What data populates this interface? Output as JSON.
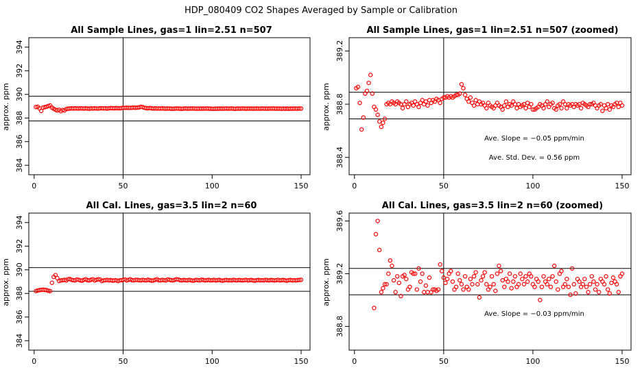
{
  "figure": {
    "title": "HDP_080409  CO2 Shapes Averaged by Sample or Calibration",
    "marker_color": "#ff0000"
  },
  "chart_data": [
    {
      "type": "scatter",
      "title": "All Sample Lines, gas=1 lin=2.51 n=507",
      "xlabel": "",
      "ylabel": "approx. ppm",
      "xlim": [
        -3,
        155
      ],
      "ylim": [
        383.2,
        394.8
      ],
      "xticks": [
        "0",
        "50",
        "100",
        "150"
      ],
      "yticks": [
        "384",
        "386",
        "388",
        "390",
        "392",
        "394"
      ],
      "hlines": [
        389.85,
        387.75
      ],
      "vline": 50,
      "annotations": [],
      "x": [
        1,
        2,
        3,
        4,
        5,
        6,
        7,
        8,
        9,
        10,
        11,
        12,
        13,
        14,
        15,
        16,
        17,
        18,
        19,
        20,
        21,
        22,
        23,
        24,
        25,
        26,
        27,
        28,
        29,
        30,
        31,
        32,
        33,
        34,
        35,
        36,
        37,
        38,
        39,
        40,
        41,
        42,
        43,
        44,
        45,
        46,
        47,
        48,
        49,
        50,
        51,
        52,
        53,
        54,
        55,
        56,
        57,
        58,
        59,
        60,
        61,
        62,
        63,
        64,
        65,
        66,
        67,
        68,
        69,
        70,
        71,
        72,
        73,
        74,
        75,
        76,
        77,
        78,
        79,
        80,
        81,
        82,
        83,
        84,
        85,
        86,
        87,
        88,
        89,
        90,
        91,
        92,
        93,
        94,
        95,
        96,
        97,
        98,
        99,
        100,
        101,
        102,
        103,
        104,
        105,
        106,
        107,
        108,
        109,
        110,
        111,
        112,
        113,
        114,
        115,
        116,
        117,
        118,
        119,
        120,
        121,
        122,
        123,
        124,
        125,
        126,
        127,
        128,
        129,
        130,
        131,
        132,
        133,
        134,
        135,
        136,
        137,
        138,
        139,
        140,
        141,
        142,
        143,
        144,
        145,
        146,
        147,
        148,
        149,
        150
      ],
      "y": [
        388.93,
        388.95,
        388.82,
        388.6,
        388.88,
        388.92,
        388.96,
        389.02,
        389.06,
        388.88,
        388.78,
        388.7,
        388.64,
        388.7,
        388.58,
        388.68,
        388.64,
        388.76,
        388.79,
        388.8,
        388.82,
        388.8,
        388.82,
        388.81,
        388.8,
        388.82,
        388.81,
        388.8,
        388.82,
        388.8,
        388.79,
        388.82,
        388.8,
        388.82,
        388.81,
        388.8,
        388.82,
        388.83,
        388.81,
        388.82,
        388.8,
        388.82,
        388.84,
        388.83,
        388.82,
        388.84,
        388.83,
        388.82,
        388.84,
        388.86,
        388.86,
        388.87,
        388.86,
        388.86,
        388.87,
        388.88,
        388.87,
        388.88,
        388.9,
        388.95,
        388.92,
        388.86,
        388.84,
        388.82,
        388.85,
        388.82,
        388.8,
        388.82,
        388.8,
        388.81,
        388.8,
        388.82,
        388.8,
        388.79,
        388.81,
        388.8,
        388.79,
        388.78,
        388.8,
        388.81,
        388.8,
        388.79,
        388.78,
        388.8,
        388.81,
        388.79,
        388.8,
        388.8,
        388.81,
        388.8,
        388.79,
        388.8,
        388.79,
        388.8,
        388.8,
        388.8,
        388.81,
        388.79,
        388.8,
        388.78,
        388.78,
        388.79,
        388.79,
        388.8,
        388.8,
        388.79,
        388.8,
        388.81,
        388.79,
        388.8,
        388.81,
        388.79,
        388.78,
        388.8,
        388.8,
        388.79,
        388.81,
        388.8,
        388.79,
        388.8,
        388.8,
        388.8,
        388.79,
        388.8,
        388.8,
        388.8,
        388.79,
        388.81,
        388.8,
        388.8,
        388.79,
        388.8,
        388.8,
        388.81,
        388.8,
        388.79,
        388.8,
        388.8,
        388.78,
        388.8,
        388.79,
        388.8,
        388.78,
        388.8,
        388.79,
        388.8,
        388.8,
        388.79,
        388.81,
        388.8
      ]
    },
    {
      "type": "scatter",
      "title": "All Sample Lines, gas=1 lin=2.51 n=507 (zoomed)",
      "xlabel": "",
      "ylabel": "approx. ppm",
      "xlim": [
        -3,
        155
      ],
      "ylim": [
        388.27,
        389.3
      ],
      "xticks": [
        "0",
        "50",
        "100",
        "150"
      ],
      "yticks": [
        "388.4",
        "388.8",
        "389.2"
      ],
      "hlines": [
        388.89,
        388.69
      ],
      "vline": 50,
      "annotations": [
        "Ave. Slope =  −0.05  ppm/min",
        "Ave. Std. Dev. =  0.56  ppm"
      ],
      "x": [
        1,
        2,
        3,
        4,
        5,
        6,
        7,
        8,
        9,
        10,
        11,
        12,
        13,
        14,
        15,
        16,
        17,
        18,
        19,
        20,
        21,
        22,
        23,
        24,
        25,
        26,
        27,
        28,
        29,
        30,
        31,
        32,
        33,
        34,
        35,
        36,
        37,
        38,
        39,
        40,
        41,
        42,
        43,
        44,
        45,
        46,
        47,
        48,
        49,
        50,
        51,
        52,
        53,
        54,
        55,
        56,
        57,
        58,
        59,
        60,
        61,
        62,
        63,
        64,
        65,
        66,
        67,
        68,
        69,
        70,
        71,
        72,
        73,
        74,
        75,
        76,
        77,
        78,
        79,
        80,
        81,
        82,
        83,
        84,
        85,
        86,
        87,
        88,
        89,
        90,
        91,
        92,
        93,
        94,
        95,
        96,
        97,
        98,
        99,
        100,
        101,
        102,
        103,
        104,
        105,
        106,
        107,
        108,
        109,
        110,
        111,
        112,
        113,
        114,
        115,
        116,
        117,
        118,
        119,
        120,
        121,
        122,
        123,
        124,
        125,
        126,
        127,
        128,
        129,
        130,
        131,
        132,
        133,
        134,
        135,
        136,
        137,
        138,
        139,
        140,
        141,
        142,
        143,
        144,
        145,
        146,
        147,
        148,
        149,
        150
      ],
      "y": [
        388.92,
        388.93,
        388.81,
        388.61,
        388.7,
        388.88,
        388.9,
        388.96,
        389.02,
        388.88,
        388.78,
        388.76,
        388.72,
        388.67,
        388.63,
        388.66,
        388.69,
        388.8,
        388.81,
        388.8,
        388.82,
        388.81,
        388.8,
        388.82,
        388.81,
        388.8,
        388.77,
        388.8,
        388.82,
        388.78,
        388.8,
        388.81,
        388.79,
        388.82,
        388.8,
        388.78,
        388.81,
        388.83,
        388.8,
        388.82,
        388.79,
        388.83,
        388.81,
        388.83,
        388.82,
        388.84,
        388.83,
        388.81,
        388.84,
        388.85,
        388.85,
        388.86,
        388.85,
        388.86,
        388.85,
        388.86,
        388.87,
        388.87,
        388.88,
        388.95,
        388.92,
        388.87,
        388.84,
        388.82,
        388.85,
        388.81,
        388.79,
        388.83,
        388.8,
        388.82,
        388.8,
        388.81,
        388.79,
        388.77,
        388.81,
        388.79,
        388.78,
        388.77,
        388.79,
        388.81,
        388.79,
        388.78,
        388.76,
        388.79,
        388.82,
        388.78,
        388.8,
        388.79,
        388.82,
        388.8,
        388.77,
        388.8,
        388.78,
        388.79,
        388.8,
        388.77,
        388.81,
        388.78,
        388.8,
        388.76,
        388.76,
        388.77,
        388.78,
        388.8,
        388.79,
        388.77,
        388.8,
        388.82,
        388.78,
        388.8,
        388.81,
        388.77,
        388.76,
        388.79,
        388.8,
        388.77,
        388.82,
        388.8,
        388.77,
        388.8,
        388.79,
        388.8,
        388.78,
        388.8,
        388.79,
        388.8,
        388.77,
        388.81,
        388.8,
        388.79,
        388.78,
        388.8,
        388.8,
        388.81,
        388.79,
        388.77,
        388.79,
        388.8,
        388.75,
        388.79,
        388.77,
        388.8,
        388.76,
        388.79,
        388.78,
        388.8,
        388.81,
        388.78,
        388.81,
        388.79
      ]
    },
    {
      "type": "scatter",
      "title": "All Cal. Lines, gas=3.5 lin=2 n=60",
      "xlabel": "",
      "ylabel": "approx. ppm",
      "xlim": [
        -3,
        155
      ],
      "ylim": [
        383.2,
        394.8
      ],
      "xticks": [
        "0",
        "50",
        "100",
        "150"
      ],
      "yticks": [
        "384",
        "386",
        "388",
        "390",
        "392",
        "394"
      ],
      "hlines": [
        390.18,
        388.18
      ],
      "vline": 50,
      "annotations": [],
      "x": [
        1,
        2,
        3,
        4,
        5,
        6,
        7,
        8,
        9,
        10,
        11,
        12,
        13,
        14,
        15,
        16,
        17,
        18,
        19,
        20,
        21,
        22,
        23,
        24,
        25,
        26,
        27,
        28,
        29,
        30,
        31,
        32,
        33,
        34,
        35,
        36,
        37,
        38,
        39,
        40,
        41,
        42,
        43,
        44,
        45,
        46,
        47,
        48,
        49,
        50,
        51,
        52,
        53,
        54,
        55,
        56,
        57,
        58,
        59,
        60,
        61,
        62,
        63,
        64,
        65,
        66,
        67,
        68,
        69,
        70,
        71,
        72,
        73,
        74,
        75,
        76,
        77,
        78,
        79,
        80,
        81,
        82,
        83,
        84,
        85,
        86,
        87,
        88,
        89,
        90,
        91,
        92,
        93,
        94,
        95,
        96,
        97,
        98,
        99,
        100,
        101,
        102,
        103,
        104,
        105,
        106,
        107,
        108,
        109,
        110,
        111,
        112,
        113,
        114,
        115,
        116,
        117,
        118,
        119,
        120,
        121,
        122,
        123,
        124,
        125,
        126,
        127,
        128,
        129,
        130,
        131,
        132,
        133,
        134,
        135,
        136,
        137,
        138,
        139,
        140,
        141,
        142,
        143,
        144,
        145,
        146,
        147,
        148,
        149,
        150
      ],
      "y": [
        388.2,
        388.24,
        388.28,
        388.3,
        388.32,
        388.3,
        388.28,
        388.22,
        388.2,
        388.9,
        389.4,
        389.55,
        389.3,
        389.05,
        389.1,
        389.12,
        389.15,
        389.1,
        389.2,
        389.22,
        389.15,
        389.12,
        389.1,
        389.18,
        389.15,
        389.1,
        389.08,
        389.15,
        389.2,
        389.12,
        389.1,
        389.16,
        389.2,
        389.1,
        389.15,
        389.2,
        389.18,
        389.05,
        389.1,
        389.12,
        389.15,
        389.1,
        389.13,
        389.08,
        389.1,
        389.12,
        389.05,
        389.1,
        389.12,
        389.15,
        389.18,
        389.1,
        389.15,
        389.2,
        389.12,
        389.1,
        389.15,
        389.14,
        389.12,
        389.1,
        389.15,
        389.12,
        389.1,
        389.16,
        389.12,
        389.08,
        389.1,
        389.15,
        389.2,
        389.12,
        389.1,
        389.15,
        389.12,
        389.1,
        389.18,
        389.15,
        389.12,
        389.1,
        389.15,
        389.2,
        389.18,
        389.12,
        389.1,
        389.14,
        389.12,
        389.1,
        389.15,
        389.12,
        389.08,
        389.1,
        389.15,
        389.12,
        389.1,
        389.16,
        389.14,
        389.1,
        389.12,
        389.15,
        389.1,
        389.12,
        389.14,
        389.1,
        389.12,
        389.15,
        389.1,
        389.08,
        389.12,
        389.14,
        389.1,
        389.12,
        389.1,
        389.15,
        389.12,
        389.1,
        389.14,
        389.12,
        389.1,
        389.12,
        389.15,
        389.1,
        389.12,
        389.14,
        389.1,
        389.08,
        389.12,
        389.14,
        389.1,
        389.12,
        389.1,
        389.15,
        389.12,
        389.1,
        389.14,
        389.12,
        389.1,
        389.12,
        389.15,
        389.1,
        389.12,
        389.14,
        389.1,
        389.08,
        389.12,
        389.14,
        389.1,
        389.12,
        389.1,
        389.12,
        389.14,
        389.15
      ]
    },
    {
      "type": "scatter",
      "title": "All Cal. Lines, gas=3.5 lin=2 n=60 (zoomed)",
      "xlabel": "",
      "ylabel": "approx. ppm",
      "xlim": [
        -3,
        155
      ],
      "ylim": [
        388.62,
        389.66
      ],
      "xticks": [
        "0",
        "50",
        "100",
        "150"
      ],
      "yticks": [
        "388.8",
        "389.2",
        "389.6"
      ],
      "hlines": [
        389.24,
        389.04
      ],
      "vline": 50,
      "annotations": [
        "Ave. Slope =  −0.03  ppm/min"
      ],
      "x": [
        11,
        12,
        13,
        14,
        15,
        16,
        17,
        18,
        19,
        20,
        21,
        22,
        23,
        24,
        25,
        26,
        27,
        28,
        29,
        30,
        31,
        32,
        33,
        34,
        35,
        36,
        37,
        38,
        39,
        40,
        41,
        42,
        43,
        44,
        45,
        46,
        47,
        48,
        49,
        50,
        51,
        52,
        53,
        54,
        55,
        56,
        57,
        58,
        59,
        60,
        61,
        62,
        63,
        64,
        65,
        66,
        67,
        68,
        69,
        70,
        71,
        72,
        73,
        74,
        75,
        76,
        77,
        78,
        79,
        80,
        81,
        82,
        83,
        84,
        85,
        86,
        87,
        88,
        89,
        90,
        91,
        92,
        93,
        94,
        95,
        96,
        97,
        98,
        99,
        100,
        101,
        102,
        103,
        104,
        105,
        106,
        107,
        108,
        109,
        110,
        111,
        112,
        113,
        114,
        115,
        116,
        117,
        118,
        119,
        120,
        121,
        122,
        123,
        124,
        125,
        126,
        127,
        128,
        129,
        130,
        131,
        132,
        133,
        134,
        135,
        136,
        137,
        138,
        139,
        140,
        141,
        142,
        143,
        144,
        145,
        146,
        147,
        148,
        149,
        150
      ],
      "y": [
        388.94,
        389.5,
        389.6,
        389.38,
        389.06,
        389.09,
        389.12,
        389.12,
        389.2,
        389.3,
        389.26,
        389.15,
        389.06,
        389.18,
        389.13,
        389.03,
        389.18,
        389.19,
        389.16,
        389.08,
        389.1,
        389.21,
        389.2,
        389.2,
        389.08,
        389.24,
        389.14,
        389.2,
        389.06,
        389.11,
        389.06,
        389.17,
        389.06,
        389.08,
        389.08,
        389.07,
        389.08,
        389.27,
        389.22,
        389.17,
        389.13,
        389.16,
        389.2,
        389.22,
        389.14,
        389.08,
        389.1,
        389.2,
        389.15,
        389.12,
        389.08,
        389.18,
        389.1,
        389.08,
        389.16,
        389.12,
        389.18,
        389.21,
        389.12,
        389.02,
        389.15,
        389.18,
        389.21,
        389.12,
        389.08,
        389.1,
        389.18,
        389.12,
        389.07,
        389.2,
        389.26,
        389.22,
        389.15,
        389.1,
        389.16,
        389.14,
        389.2,
        389.09,
        389.14,
        389.18,
        389.1,
        389.12,
        389.2,
        389.16,
        389.12,
        389.18,
        389.14,
        389.2,
        389.18,
        389.12,
        389.1,
        389.16,
        389.14,
        389.0,
        389.1,
        389.18,
        389.14,
        389.12,
        389.16,
        389.1,
        389.18,
        389.26,
        389.14,
        389.08,
        389.2,
        389.22,
        389.1,
        389.12,
        389.16,
        389.1,
        389.04,
        389.24,
        389.12,
        389.05,
        389.16,
        389.14,
        389.1,
        389.12,
        389.16,
        389.1,
        389.06,
        389.12,
        389.18,
        389.14,
        389.08,
        389.12,
        389.06,
        389.16,
        389.14,
        389.12,
        389.18,
        389.08,
        389.05,
        389.13,
        389.17,
        389.14,
        389.12,
        389.06,
        389.18,
        389.2
      ]
    }
  ]
}
